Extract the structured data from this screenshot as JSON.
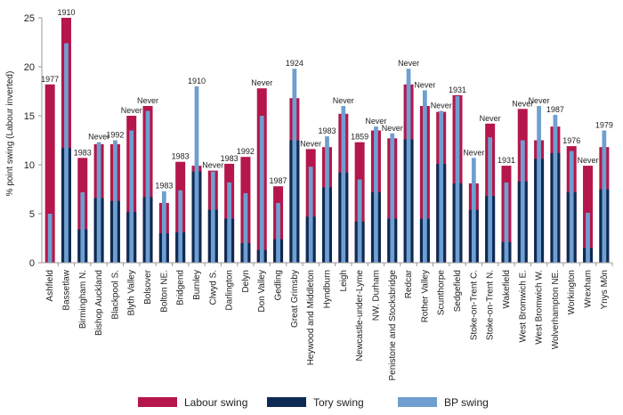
{
  "chart_data": {
    "type": "bar",
    "ylabel": "% point swing (Labour inverted)",
    "ylim": [
      0,
      25
    ],
    "yticks": [
      0,
      5,
      10,
      15,
      20,
      25
    ],
    "grid": false,
    "legend_position": "bottom",
    "categories": [
      "Ashfield",
      "Bassetlaw",
      "Birmingham N.",
      "Bishop Auckland",
      "Blackpool S.",
      "Blyth Valley",
      "Bolsover",
      "Bolton NE.",
      "Bridgend",
      "Burnley",
      "Clwyd S.",
      "Darlington",
      "Delyn",
      "Don Valley",
      "Gedling",
      "Great Grimsby",
      "Heywood and Middleton",
      "Hyndburn",
      "Leigh",
      "Newcastle-under-Lyme",
      "NW. Durham",
      "Penistone and Stocksbridge",
      "Redcar",
      "Rother Valley",
      "Scunthorpe",
      "Sedgefield",
      "Stoke-on-Trent C.",
      "Stoke-on-Trent N.",
      "Wakefield",
      "West Bromwich E.",
      "West Bromwich W.",
      "Wolverhampton NE.",
      "Workington",
      "Wrexham",
      "Ynys Môn"
    ],
    "annotations": [
      "1977",
      "1910",
      "1983",
      "Never",
      "1992",
      "Never",
      "Never",
      "1983",
      "1983",
      "1910",
      "Never",
      "1983",
      "1992",
      "Never",
      "1987",
      "1924",
      "Never",
      "1983",
      "Never",
      "1859",
      "Never",
      "Never",
      "Never",
      "Never",
      "Never",
      "1931",
      "Never",
      "Never",
      "1931",
      "Never",
      "Never",
      "1987",
      "1976",
      "Never",
      "1979"
    ],
    "series": [
      {
        "name": "Labour swing",
        "color": "#b5164b",
        "values": [
          18.2,
          25.0,
          10.7,
          12.1,
          12.1,
          15.0,
          16.0,
          6.1,
          10.3,
          9.9,
          9.4,
          10.1,
          10.8,
          17.8,
          7.8,
          16.8,
          11.6,
          11.8,
          15.2,
          12.3,
          13.5,
          12.7,
          18.2,
          16.0,
          15.4,
          17.1,
          8.1,
          14.2,
          9.9,
          15.7,
          12.5,
          13.9,
          11.9,
          9.9,
          11.8
        ]
      },
      {
        "name": "Tory swing",
        "color": "#0d2a54",
        "values": [
          0,
          11.7,
          3.4,
          6.6,
          6.3,
          5.2,
          6.7,
          3.0,
          3.1,
          9.3,
          5.4,
          4.5,
          2.0,
          1.3,
          2.4,
          12.5,
          4.7,
          7.7,
          9.2,
          4.2,
          7.2,
          4.5,
          12.6,
          4.5,
          10.1,
          8.1,
          5.4,
          6.8,
          2.1,
          8.3,
          10.6,
          11.2,
          7.2,
          1.5,
          7.5
        ]
      },
      {
        "name": "BP swing",
        "color": "#6f9fcf",
        "values": [
          5.0,
          22.4,
          7.2,
          12.3,
          12.5,
          13.5,
          15.5,
          7.3,
          7.4,
          18.0,
          9.3,
          8.2,
          7.1,
          15.0,
          6.1,
          19.8,
          9.8,
          12.9,
          16.0,
          8.5,
          13.9,
          13.2,
          19.8,
          17.6,
          15.5,
          17.0,
          10.7,
          12.8,
          8.2,
          12.5,
          16.0,
          15.1,
          11.4,
          5.1,
          13.5
        ]
      }
    ]
  }
}
